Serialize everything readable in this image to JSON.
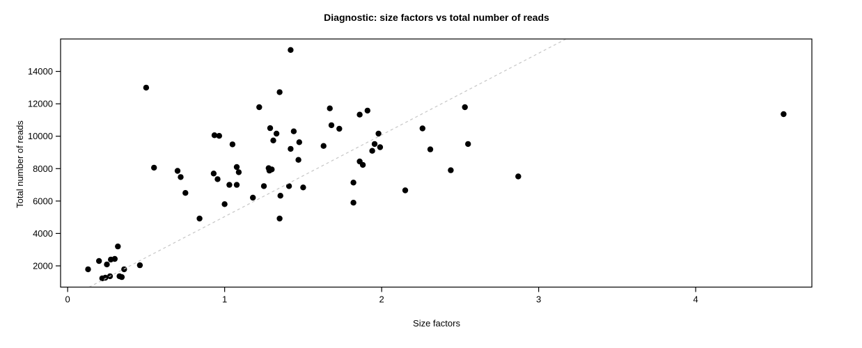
{
  "chart_data": {
    "type": "scatter",
    "title": "Diagnostic: size factors vs total number of reads",
    "xlabel": "Size factors",
    "ylabel": "Total number of reads",
    "xlim": [
      -0.045,
      4.74
    ],
    "ylim": [
      690,
      16000
    ],
    "x_ticks": [
      0,
      1,
      2,
      3,
      4
    ],
    "y_ticks": [
      2000,
      4000,
      6000,
      8000,
      10000,
      12000,
      14000
    ],
    "grid": false,
    "legend": "none",
    "point_color": "#000000",
    "background": "#ffffff",
    "reference_line": {
      "style": "dashed",
      "color": "#c6c6c6",
      "intercept": 0,
      "slope": 5040
    },
    "points": [
      [
        0.13,
        1790
      ],
      [
        0.2,
        2300
      ],
      [
        0.25,
        2090
      ],
      [
        0.275,
        2390
      ],
      [
        0.3,
        2430
      ],
      [
        0.32,
        3200
      ],
      [
        0.22,
        1230
      ],
      [
        0.24,
        1270
      ],
      [
        0.27,
        1360
      ],
      [
        0.33,
        1360
      ],
      [
        0.345,
        1310
      ],
      [
        0.36,
        1790
      ],
      [
        0.46,
        2040
      ],
      [
        0.5,
        13000
      ],
      [
        0.55,
        8060
      ],
      [
        0.7,
        7860
      ],
      [
        0.72,
        7480
      ],
      [
        0.75,
        6500
      ],
      [
        0.84,
        4920
      ],
      [
        0.93,
        7700
      ],
      [
        0.955,
        7350
      ],
      [
        0.935,
        10060
      ],
      [
        0.965,
        10020
      ],
      [
        1.0,
        5810
      ],
      [
        1.03,
        7000
      ],
      [
        1.077,
        7000
      ],
      [
        1.05,
        9500
      ],
      [
        1.077,
        8100
      ],
      [
        1.09,
        7780
      ],
      [
        1.18,
        6210
      ],
      [
        1.22,
        11790
      ],
      [
        1.25,
        6920
      ],
      [
        1.28,
        8030
      ],
      [
        1.3,
        7950
      ],
      [
        1.285,
        7880
      ],
      [
        1.29,
        10500
      ],
      [
        1.31,
        9740
      ],
      [
        1.33,
        10160
      ],
      [
        1.35,
        12720
      ],
      [
        1.355,
        6330
      ],
      [
        1.35,
        4920
      ],
      [
        1.41,
        6920
      ],
      [
        1.42,
        15320
      ],
      [
        1.42,
        9220
      ],
      [
        1.44,
        10300
      ],
      [
        1.475,
        9630
      ],
      [
        1.47,
        8540
      ],
      [
        1.5,
        6840
      ],
      [
        1.63,
        9400
      ],
      [
        1.67,
        11720
      ],
      [
        1.68,
        10680
      ],
      [
        1.73,
        10460
      ],
      [
        1.82,
        7140
      ],
      [
        1.82,
        5900
      ],
      [
        1.86,
        11330
      ],
      [
        1.91,
        11580
      ],
      [
        1.86,
        8440
      ],
      [
        1.88,
        8230
      ],
      [
        1.94,
        9100
      ],
      [
        1.955,
        9520
      ],
      [
        1.98,
        10160
      ],
      [
        1.99,
        9320
      ],
      [
        2.15,
        6660
      ],
      [
        2.26,
        10480
      ],
      [
        2.31,
        9190
      ],
      [
        2.44,
        7900
      ],
      [
        2.53,
        11790
      ],
      [
        2.55,
        9520
      ],
      [
        2.87,
        7520
      ],
      [
        4.56,
        11360
      ]
    ]
  }
}
